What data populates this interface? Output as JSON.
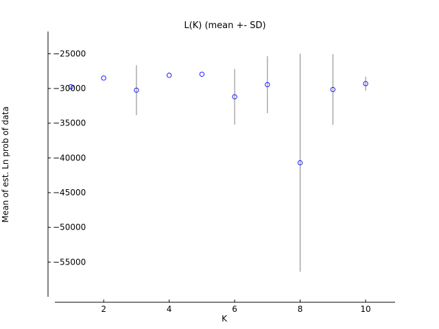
{
  "chart_data": {
    "type": "scatter",
    "title": "L(K) (mean +- SD)",
    "xlabel": "K",
    "ylabel": "Mean of est. Ln prob of data",
    "xlim": [
      0.3,
      10.9
    ],
    "ylim": [
      -60000,
      -21800
    ],
    "xticks": [
      2,
      4,
      6,
      8,
      10
    ],
    "yticks": [
      -25000,
      -30000,
      -35000,
      -40000,
      -45000,
      -50000,
      -55000
    ],
    "grid": false,
    "error_bars": true,
    "marker_color": "#0000ff",
    "errorbar_color": "#808080",
    "points": [
      {
        "x": 1,
        "mean": -29750,
        "sd": 0
      },
      {
        "x": 2,
        "mean": -28500,
        "sd": 0
      },
      {
        "x": 3,
        "mean": -30250,
        "sd": 3600
      },
      {
        "x": 4,
        "mean": -28100,
        "sd": 0
      },
      {
        "x": 5,
        "mean": -27950,
        "sd": 0
      },
      {
        "x": 6,
        "mean": -31200,
        "sd": 4000
      },
      {
        "x": 7,
        "mean": -29450,
        "sd": 4100
      },
      {
        "x": 8,
        "mean": -40700,
        "sd": 15700
      },
      {
        "x": 9,
        "mean": -30150,
        "sd": 5100
      },
      {
        "x": 10,
        "mean": -29300,
        "sd": 1000
      }
    ]
  }
}
